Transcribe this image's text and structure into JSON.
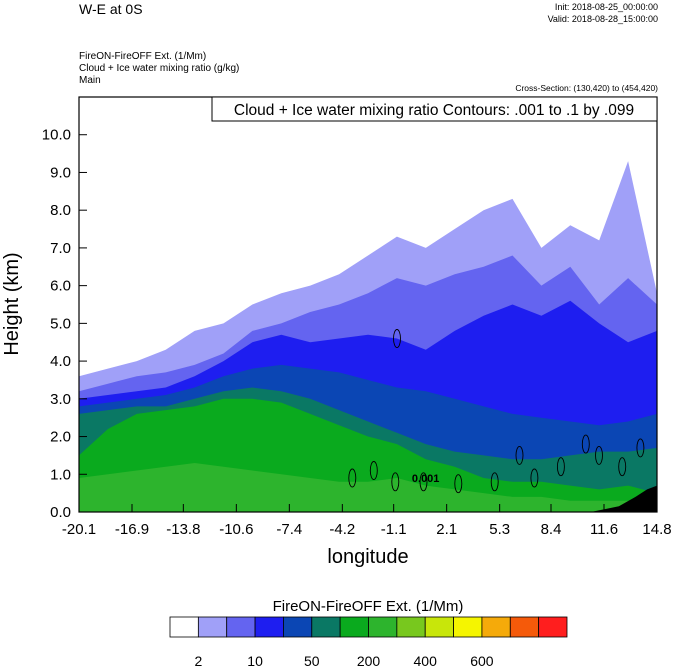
{
  "header": {
    "title_left": "W-E at 0S",
    "init": "Init: 2018-08-25_00:00:00",
    "valid": "Valid: 2018-08-28_15:00:00",
    "field_line1": "FireON-FireOFF Ext.   (1/Mm)",
    "field_line2": "Cloud + Ice water mixing ratio   (g/kg)",
    "field_line3": "Main",
    "cross_section": "Cross-Section: (130,420) to (454,420)"
  },
  "chart_data": {
    "type": "heatmap",
    "title": "Cloud + Ice water mixing ratio Contours: .001 to .1 by .099",
    "xlabel": "longitude",
    "ylabel": "Height (km)",
    "xlim": [
      -20.1,
      14.8
    ],
    "ylim": [
      0.0,
      11.0
    ],
    "x_ticks": [
      "-20.1",
      "-16.9",
      "-13.8",
      "-10.6",
      "-7.4",
      "-4.2",
      "-1.1",
      "2.1",
      "5.3",
      "8.4",
      "11.6",
      "14.8"
    ],
    "y_ticks": [
      "0.0",
      "1.0",
      "2.0",
      "3.0",
      "4.0",
      "5.0",
      "6.0",
      "7.0",
      "8.0",
      "9.0",
      "10.0"
    ],
    "contour_label": "0.001",
    "colorbar": {
      "title": "FireON-FireOFF Ext.  (1/Mm)",
      "tick_labels": [
        "2",
        "10",
        "50",
        "200",
        "400",
        "600"
      ],
      "colors": [
        "#ffffff",
        "#a0a0f8",
        "#6464f0",
        "#1e1ef0",
        "#0b46b4",
        "#0a7864",
        "#0aaa1e",
        "#2db42d",
        "#78c81e",
        "#c8e60a",
        "#f5f500",
        "#f5aa0a",
        "#f55a0a",
        "#ff1e1e"
      ]
    },
    "layers": [
      {
        "name": "light-blue",
        "color": "#a0a0f8",
        "top_km": [
          3.6,
          3.8,
          4.0,
          4.3,
          4.8,
          5.0,
          5.5,
          5.8,
          6.0,
          6.3,
          6.8,
          7.3,
          7.0,
          7.5,
          8.0,
          8.3,
          7.0,
          7.6,
          7.2,
          9.3,
          5.8
        ]
      },
      {
        "name": "mid-blue",
        "color": "#6464f0",
        "top_km": [
          3.2,
          3.4,
          3.6,
          3.7,
          3.9,
          4.2,
          4.8,
          5.0,
          5.3,
          5.5,
          5.8,
          6.2,
          6.0,
          6.3,
          6.5,
          6.8,
          6.0,
          6.5,
          5.5,
          6.2,
          5.5
        ]
      },
      {
        "name": "blue",
        "color": "#1e1ef0",
        "top_km": [
          3.0,
          3.1,
          3.2,
          3.3,
          3.6,
          4.0,
          4.5,
          4.7,
          4.5,
          4.6,
          4.7,
          4.6,
          4.3,
          4.8,
          5.2,
          5.5,
          5.2,
          5.6,
          5.0,
          4.5,
          4.8
        ]
      },
      {
        "name": "dark-blue",
        "color": "#0b46b4",
        "top_km": [
          2.8,
          2.9,
          3.0,
          3.1,
          3.3,
          3.6,
          3.8,
          3.9,
          3.8,
          3.7,
          3.5,
          3.3,
          3.2,
          3.0,
          2.8,
          2.6,
          2.5,
          2.4,
          2.3,
          2.4,
          2.6
        ]
      },
      {
        "name": "teal",
        "color": "#0a7864",
        "top_km": [
          2.6,
          2.7,
          2.8,
          2.8,
          3.0,
          3.2,
          3.3,
          3.2,
          3.0,
          2.7,
          2.4,
          2.1,
          1.8,
          1.6,
          1.5,
          1.4,
          1.4,
          1.5,
          1.6,
          1.6,
          1.7
        ]
      },
      {
        "name": "green",
        "color": "#0aaa1e",
        "top_km": [
          1.5,
          2.2,
          2.6,
          2.7,
          2.8,
          3.0,
          3.0,
          2.9,
          2.6,
          2.3,
          2.0,
          1.8,
          1.4,
          1.2,
          0.9,
          0.8,
          0.8,
          0.7,
          0.6,
          0.7,
          0.5
        ]
      },
      {
        "name": "light-green",
        "color": "#2db42d",
        "top_km": [
          0.9,
          1.0,
          1.1,
          1.2,
          1.3,
          1.2,
          1.1,
          1.0,
          0.9,
          0.8,
          0.8,
          0.9,
          0.7,
          0.6,
          0.5,
          0.4,
          0.4,
          0.3,
          0.3,
          0.3,
          0.2
        ]
      }
    ]
  }
}
